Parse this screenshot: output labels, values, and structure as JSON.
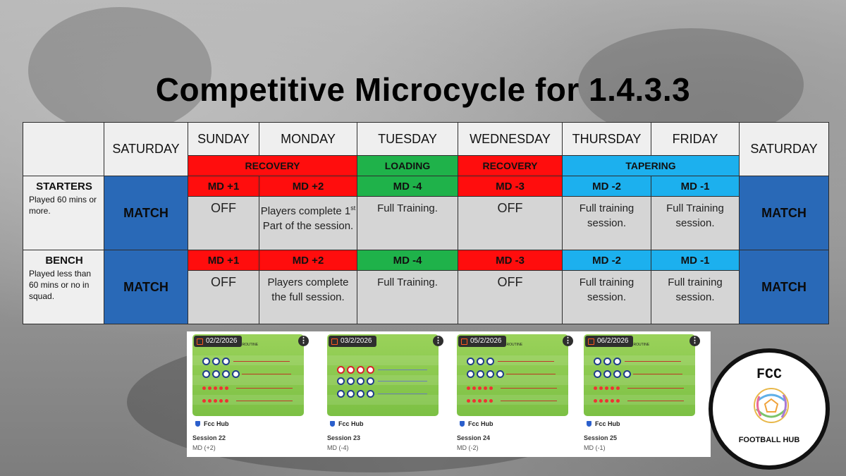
{
  "title": "Competitive Microcycle for 1.4.3.3",
  "days": {
    "sat_before": "SATURDAY",
    "sunday": "SUNDAY",
    "monday": "MONDAY",
    "tuesday": "TUESDAY",
    "wednesday": "WEDNESDAY",
    "thursday": "THURSDAY",
    "friday": "FRIDAY",
    "sat_after": "SATURDAY"
  },
  "phases": {
    "recovery1": "RECOVERY",
    "loading": "LOADING",
    "recovery2": "RECOVERY",
    "tapering": "TAPERING"
  },
  "starters": {
    "label": "STARTERS",
    "note": "Played 60 mins or more.",
    "match_before": "MATCH",
    "match_after": "MATCH",
    "md": [
      "MD +1",
      "MD +2",
      "MD -4",
      "MD -3",
      "MD -2",
      "MD -1"
    ],
    "sunday": "OFF",
    "monday_pre": "Players complete 1",
    "monday_sup": "st",
    "monday_post": " Part of the session.",
    "tuesday": "Full Training.",
    "wednesday": "OFF",
    "thursday": "Full training session.",
    "friday": "Full Training session."
  },
  "bench": {
    "label": "BENCH",
    "note": "Played less than 60 mins or no in squad.",
    "match_before": "MATCH",
    "match_after": "MATCH",
    "md": [
      "MD +1",
      "MD +2",
      "MD -4",
      "MD -3",
      "MD -2",
      "MD -1"
    ],
    "sunday": "OFF",
    "monday": "Players complete the full session.",
    "tuesday": "Full Training.",
    "wednesday": "OFF",
    "thursday": "Full training session.",
    "friday": "Full training session."
  },
  "sessions": [
    {
      "date": "02/2/2026",
      "brand": "Fcc Hub",
      "title": "Session 22",
      "sub": "MD (+2)"
    },
    {
      "date": "03/2/2026",
      "brand": "Fcc Hub",
      "title": "Session 23",
      "sub": "MD (-4)"
    },
    {
      "date": "05/2/2026",
      "brand": "Fcc Hub",
      "title": "Session 24",
      "sub": "MD (-2)"
    },
    {
      "date": "06/2/2026",
      "brand": "Fcc Hub",
      "title": "Session 25",
      "sub": "MD (-1)"
    }
  ],
  "drill_title": "TEAM WARM UP ROUTINE",
  "logo": {
    "top": "FCC",
    "bottom": "FOOTBALL HUB"
  },
  "colors": {
    "recovery": "#ff0d0d",
    "loading": "#1fb24a",
    "tapering": "#1cb0ee",
    "match": "#2969b7",
    "header": "#efefef",
    "cell": "#d5d5d5"
  },
  "icons": [
    "calendar-icon",
    "kebab-menu-icon",
    "shield-icon",
    "football-icon"
  ]
}
